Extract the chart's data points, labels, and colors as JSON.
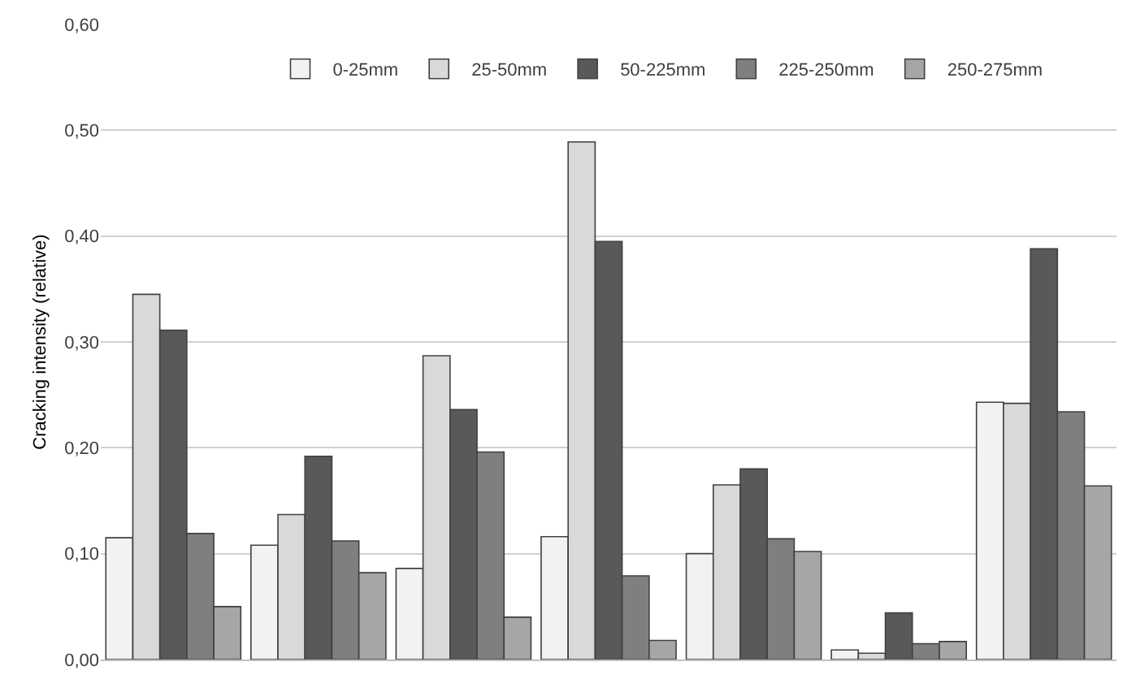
{
  "chart_data": {
    "type": "bar",
    "ylabel": "Cracking intensity (relative)",
    "categories": [
      null,
      null,
      null,
      null,
      null,
      null,
      null
    ],
    "series": [
      {
        "name": "0-25mm",
        "color": "#f2f2f2",
        "values": [
          0.115,
          0.108,
          0.086,
          0.116,
          0.1,
          0.009,
          0.243
        ]
      },
      {
        "name": "25-50mm",
        "color": "#d9d9d9",
        "values": [
          0.345,
          0.137,
          0.287,
          0.489,
          0.165,
          0.006,
          0.242
        ]
      },
      {
        "name": "50-225mm",
        "color": "#595959",
        "values": [
          0.311,
          0.192,
          0.236,
          0.395,
          0.18,
          0.044,
          0.388
        ]
      },
      {
        "name": "225-250mm",
        "color": "#7f7f7f",
        "values": [
          0.119,
          0.112,
          0.196,
          0.079,
          0.114,
          0.015,
          0.234
        ]
      },
      {
        "name": "250-275mm",
        "color": "#a6a6a6",
        "values": [
          0.05,
          0.082,
          0.04,
          0.018,
          0.102,
          0.017,
          0.164
        ]
      }
    ],
    "ylim": [
      0,
      0.6
    ],
    "yticks": [
      {
        "value": 0,
        "label": "0,00"
      },
      {
        "value": 0.1,
        "label": "0,10"
      },
      {
        "value": 0.2,
        "label": "0,20"
      },
      {
        "value": 0.3,
        "label": "0,30"
      },
      {
        "value": 0.4,
        "label": "0,40"
      },
      {
        "value": 0.5,
        "label": "0,50"
      },
      {
        "value": 0.6,
        "label": "0,60"
      }
    ],
    "grid": "y",
    "legend": "top"
  }
}
